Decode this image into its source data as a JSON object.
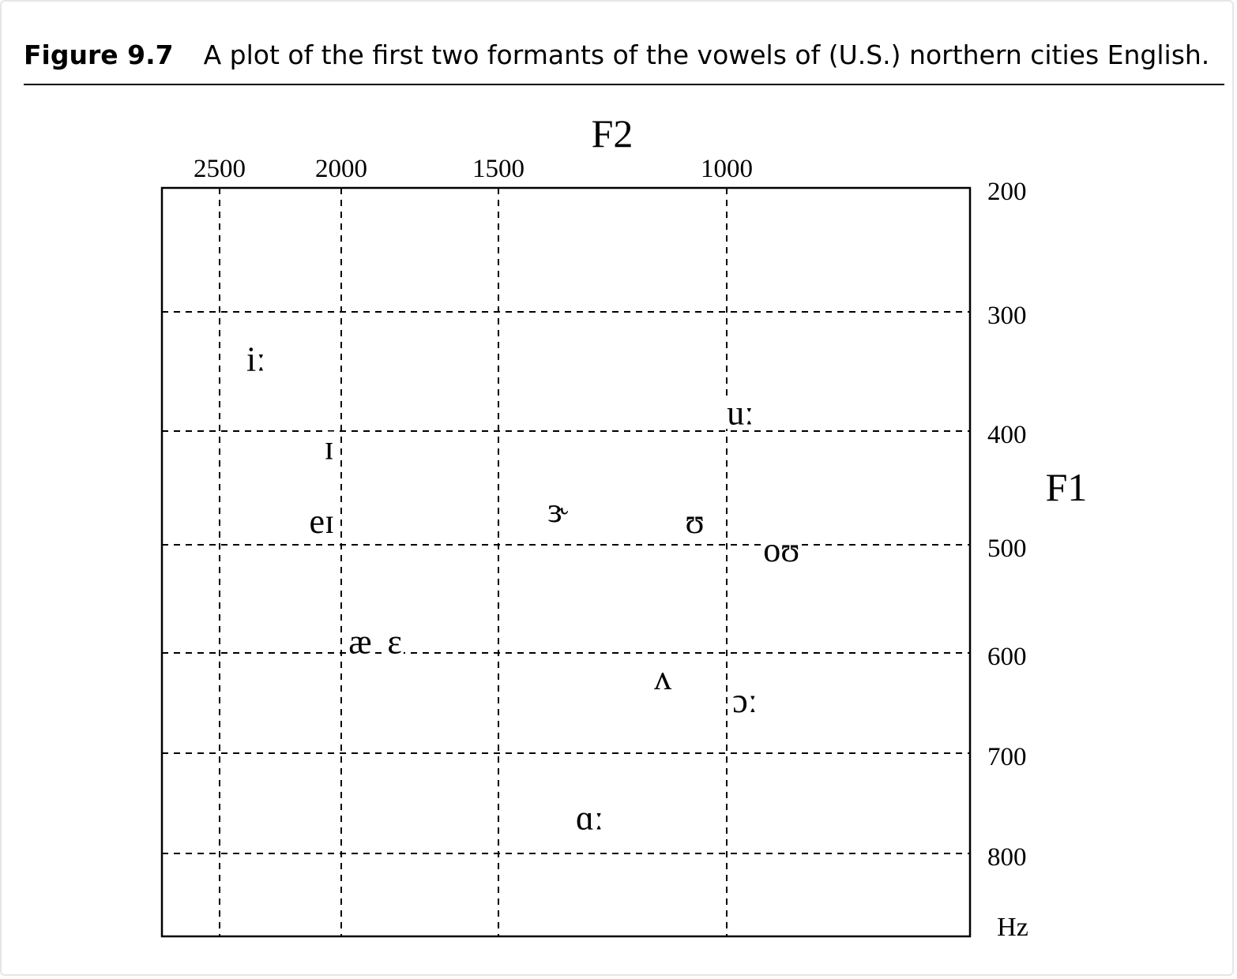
{
  "caption": {
    "number": "Figure 9.7",
    "text": "A plot of the first two formants of the vowels of (U.S.) northern cities English."
  },
  "chart_data": {
    "type": "scatter",
    "title": "",
    "xlabel": "F2",
    "ylabel": "F1",
    "unit_label": "Hz",
    "x_axis": {
      "position": "top",
      "reversed": true,
      "ticks": [
        2500,
        2000,
        1500,
        1000
      ]
    },
    "y_axis": {
      "position": "right",
      "reversed": true,
      "ticks": [
        200,
        300,
        400,
        500,
        600,
        700,
        800
      ]
    },
    "grid": "dashed",
    "legend": "none",
    "points": [
      {
        "label": "iː",
        "F2": 2350,
        "F1": 340
      },
      {
        "label": "ɪ",
        "F2": 2050,
        "F1": 415
      },
      {
        "label": "eɪ",
        "F2": 2080,
        "F1": 480
      },
      {
        "label": "æ",
        "F2": 1940,
        "F1": 590
      },
      {
        "label": "ɛ",
        "F2": 1830,
        "F1": 590
      },
      {
        "label": "ɝ",
        "F2": 1370,
        "F1": 470
      },
      {
        "label": "ʊ",
        "F2": 1070,
        "F1": 480
      },
      {
        "label": "uː",
        "F2": 970,
        "F1": 385
      },
      {
        "label": "oʊ",
        "F2": 880,
        "F1": 505
      },
      {
        "label": "ʌ",
        "F2": 1140,
        "F1": 625
      },
      {
        "label": "ɔː",
        "F2": 960,
        "F1": 648
      },
      {
        "label": "ɑː",
        "F2": 1300,
        "F1": 765
      }
    ]
  }
}
